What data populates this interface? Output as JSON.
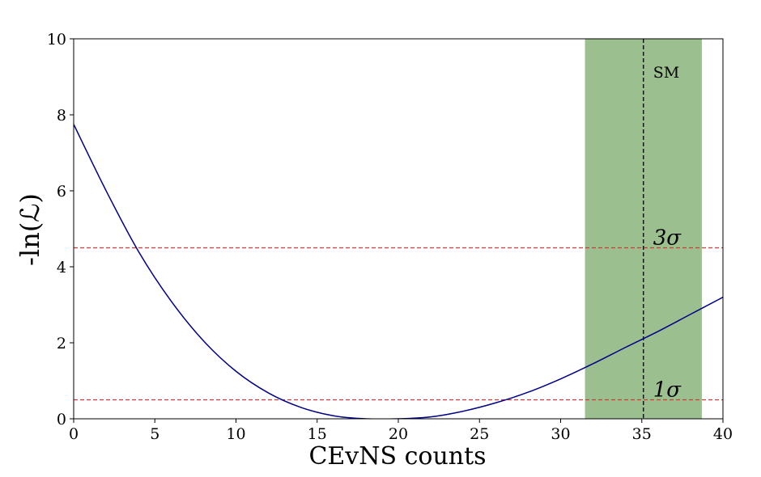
{
  "chart_data": {
    "type": "line",
    "title": "",
    "xlabel": "CEvNS counts",
    "ylabel": "-ln(ℒ)",
    "xlim": [
      0,
      40
    ],
    "ylim": [
      0,
      10
    ],
    "x_ticks": [
      0,
      5,
      10,
      15,
      20,
      25,
      30,
      35,
      40
    ],
    "y_ticks": [
      0,
      2,
      4,
      6,
      8,
      10
    ],
    "grid": false,
    "series": [
      {
        "color": "#00008b",
        "x": [
          0,
          2,
          4,
          6,
          8,
          10,
          12,
          14,
          16,
          18,
          20,
          22,
          24,
          26,
          28,
          30,
          32,
          34,
          36,
          38,
          40
        ],
        "y": [
          7.75,
          6.0,
          4.4,
          3.1,
          2.05,
          1.25,
          0.68,
          0.3,
          0.08,
          0.0,
          0.0,
          0.05,
          0.2,
          0.42,
          0.7,
          1.05,
          1.45,
          1.88,
          2.3,
          2.75,
          3.2
        ]
      }
    ],
    "band": {
      "x0": 31.5,
      "x1": 38.7,
      "color": "#9cbf8f"
    },
    "vline": {
      "x": 35.1,
      "label": "SM",
      "color": "#000000"
    },
    "hlines": [
      {
        "y": 0.5,
        "label": "1σ",
        "color": "#e03030"
      },
      {
        "y": 4.5,
        "label": "3σ",
        "color": "#e03030"
      }
    ]
  }
}
